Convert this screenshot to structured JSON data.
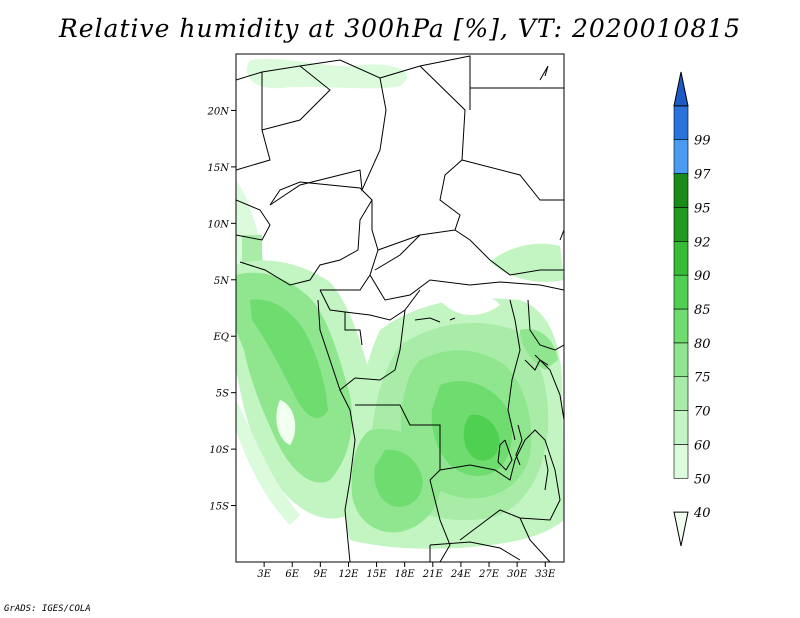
{
  "title": "Relative humidity at 300hPa [%], VT: 2020010815",
  "credit": "GrADS: IGES/COLA",
  "map": {
    "lon_range": [
      0,
      35
    ],
    "lat_range": [
      -20,
      25
    ],
    "x_ticks": [
      "3E",
      "6E",
      "9E",
      "12E",
      "15E",
      "18E",
      "21E",
      "24E",
      "27E",
      "30E",
      "33E"
    ],
    "y_ticks": [
      "20N",
      "15N",
      "10N",
      "5N",
      "EQ",
      "5S",
      "10S",
      "15S"
    ]
  },
  "colorbar": {
    "levels": [
      "40",
      "50",
      "60",
      "70",
      "75",
      "80",
      "85",
      "90",
      "92",
      "95",
      "97",
      "99"
    ],
    "colors": [
      "#f0fff0",
      "#dcfadc",
      "#c3f5c3",
      "#a8eca8",
      "#8fe68f",
      "#6fdc6f",
      "#50d050",
      "#38bc38",
      "#229a22",
      "#1a8a1a",
      "#4a9cf0",
      "#2a72dc",
      "#1e5ac8"
    ]
  }
}
